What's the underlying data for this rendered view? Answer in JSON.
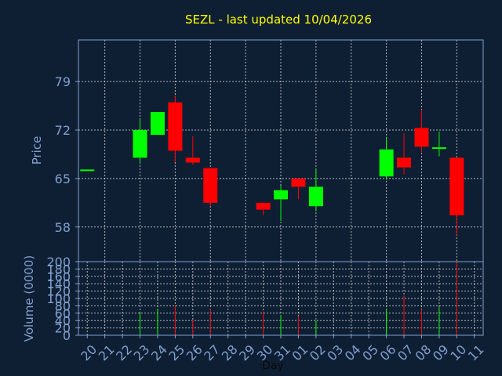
{
  "chart_data": [
    {
      "type": "candlestick",
      "title": "SEZL - last updated 10/04/2026",
      "ylabel": "Price",
      "ylim": [
        53,
        85
      ],
      "yticks": [
        58,
        65,
        72,
        79
      ],
      "grid": true,
      "categories": [
        "20",
        "21",
        "22",
        "23",
        "24",
        "25",
        "26",
        "27",
        "28",
        "29",
        "30",
        "31",
        "01",
        "02",
        "03",
        "04",
        "05",
        "06",
        "07",
        "08",
        "09",
        "10",
        "11"
      ],
      "candles": [
        {
          "x": "20",
          "open": 66.3,
          "high": 66.3,
          "low": 66.3,
          "close": 66.3
        },
        {
          "x": "23",
          "open": 68.0,
          "high": 73.5,
          "low": 67.3,
          "close": 72.0
        },
        {
          "x": "24",
          "open": 71.3,
          "high": 74.6,
          "low": 71.3,
          "close": 74.6
        },
        {
          "x": "25",
          "open": 76.0,
          "high": 77.0,
          "low": 67.4,
          "close": 69.0
        },
        {
          "x": "26",
          "open": 68.0,
          "high": 71.1,
          "low": 67.0,
          "close": 67.3
        },
        {
          "x": "27",
          "open": 66.5,
          "high": 66.5,
          "low": 61.0,
          "close": 61.5
        },
        {
          "x": "30",
          "open": 61.5,
          "high": 61.5,
          "low": 59.7,
          "close": 60.5
        },
        {
          "x": "31",
          "open": 62.0,
          "high": 64.0,
          "low": 58.9,
          "close": 63.3
        },
        {
          "x": "01",
          "open": 65.0,
          "high": 65.0,
          "low": 62.0,
          "close": 63.8
        },
        {
          "x": "02",
          "open": 61.0,
          "high": 66.4,
          "low": 60.3,
          "close": 63.8
        },
        {
          "x": "06",
          "open": 65.3,
          "high": 71.0,
          "low": 64.8,
          "close": 69.2
        },
        {
          "x": "07",
          "open": 68.0,
          "high": 71.5,
          "low": 65.6,
          "close": 66.6
        },
        {
          "x": "08",
          "open": 72.3,
          "high": 74.9,
          "low": 68.8,
          "close": 69.6
        },
        {
          "x": "09",
          "open": 69.3,
          "high": 71.8,
          "low": 68.2,
          "close": 69.5
        },
        {
          "x": "10",
          "open": 68.0,
          "high": 68.0,
          "low": 56.8,
          "close": 59.7
        }
      ]
    },
    {
      "type": "bar",
      "ylabel": "Volume (0000)",
      "xlabel": "Day",
      "ylim": [
        0,
        200
      ],
      "yticks": [
        0,
        20,
        40,
        60,
        80,
        100,
        120,
        140,
        160,
        180,
        200
      ],
      "grid": true,
      "categories": [
        "20",
        "21",
        "22",
        "23",
        "24",
        "25",
        "26",
        "27",
        "28",
        "29",
        "30",
        "31",
        "01",
        "02",
        "03",
        "04",
        "05",
        "06",
        "07",
        "08",
        "09",
        "10",
        "11"
      ],
      "bars": [
        {
          "x": "23",
          "value": 60,
          "direction": "up"
        },
        {
          "x": "24",
          "value": 72,
          "direction": "up"
        },
        {
          "x": "25",
          "value": 80,
          "direction": "down"
        },
        {
          "x": "26",
          "value": 42,
          "direction": "down"
        },
        {
          "x": "27",
          "value": 72,
          "direction": "down"
        },
        {
          "x": "30",
          "value": 65,
          "direction": "down"
        },
        {
          "x": "31",
          "value": 55,
          "direction": "up"
        },
        {
          "x": "01",
          "value": 52,
          "direction": "down"
        },
        {
          "x": "02",
          "value": 40,
          "direction": "up"
        },
        {
          "x": "06",
          "value": 72,
          "direction": "up"
        },
        {
          "x": "07",
          "value": 108,
          "direction": "down"
        },
        {
          "x": "08",
          "value": 70,
          "direction": "down"
        },
        {
          "x": "09",
          "value": 76,
          "direction": "up"
        },
        {
          "x": "10",
          "value": 200,
          "direction": "down"
        }
      ]
    }
  ],
  "colors": {
    "background": "#0f1f33",
    "axis": "#7f9fcf",
    "title": "#ffff00",
    "grid": "#ffffff",
    "up": "#00ff00",
    "down": "#ff0000"
  }
}
